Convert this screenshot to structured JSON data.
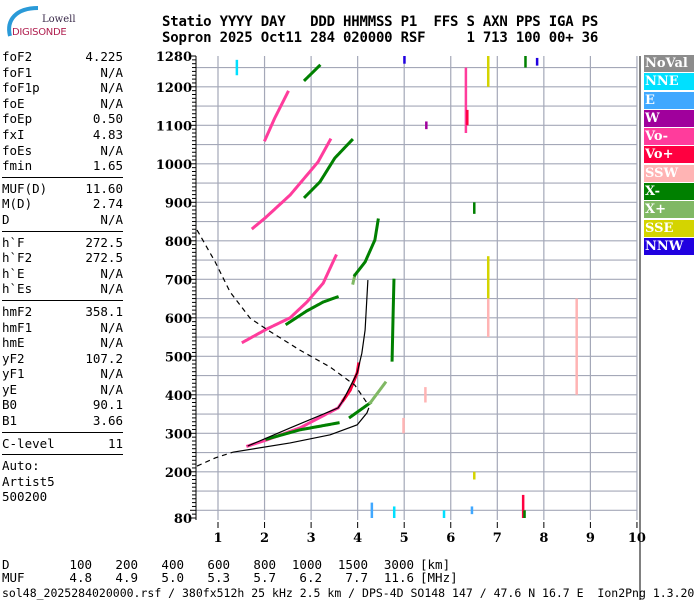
{
  "logo": {
    "line1": "Lowell",
    "line2": "DIGISONDE"
  },
  "header": {
    "line1": "Statio YYYY DAY   DDD HHMMSS P1  FFS S AXN PPS IGA PS",
    "line2": "Sopron 2025 Oct11 284 020000 RSF     1 713 100 00+ 36"
  },
  "params": {
    "groups": [
      [
        {
          "label": "foF2",
          "value": "4.225"
        },
        {
          "label": "foF1",
          "value": "N/A"
        },
        {
          "label": "foF1p",
          "value": "N/A"
        },
        {
          "label": "foE",
          "value": "N/A"
        },
        {
          "label": "foEp",
          "value": "0.50"
        },
        {
          "label": "fxI",
          "value": "4.83"
        },
        {
          "label": "foEs",
          "value": "N/A"
        },
        {
          "label": "fmin",
          "value": "1.65"
        }
      ],
      [
        {
          "label": "MUF(D)",
          "value": "11.60"
        },
        {
          "label": "M(D)",
          "value": "2.74"
        },
        {
          "label": "D",
          "value": "N/A"
        }
      ],
      [
        {
          "label": "h`F",
          "value": "272.5"
        },
        {
          "label": "h`F2",
          "value": "272.5"
        },
        {
          "label": "h`E",
          "value": "N/A"
        },
        {
          "label": "h`Es",
          "value": "N/A"
        }
      ],
      [
        {
          "label": "hmF2",
          "value": "358.1"
        },
        {
          "label": "hmF1",
          "value": "N/A"
        },
        {
          "label": "hmE",
          "value": "N/A"
        },
        {
          "label": "yF2",
          "value": "107.2"
        },
        {
          "label": "yF1",
          "value": "N/A"
        },
        {
          "label": "yE",
          "value": "N/A"
        },
        {
          "label": "B0",
          "value": "90.1"
        },
        {
          "label": "B1",
          "value": "3.66"
        }
      ],
      [
        {
          "label": "C-level",
          "value": "11"
        }
      ]
    ],
    "auto": [
      "Auto:",
      "Artist5",
      "500200"
    ]
  },
  "legend": [
    {
      "label": "NoVal",
      "color": "#8c8c8c"
    },
    {
      "label": "NNE",
      "color": "#00e0ff"
    },
    {
      "label": "E",
      "color": "#40a8ff"
    },
    {
      "label": "W",
      "color": "#a0009c"
    },
    {
      "label": "Vo-",
      "color": "#ff3c9c"
    },
    {
      "label": "Vo+",
      "color": "#ff0040"
    },
    {
      "label": "SSW",
      "color": "#ffb4b4"
    },
    {
      "label": "X-",
      "color": "#008000"
    },
    {
      "label": "X+",
      "color": "#80b864"
    },
    {
      "label": "SSE",
      "color": "#d4d400"
    },
    {
      "label": "NNW",
      "color": "#2000e0"
    }
  ],
  "muf_table": {
    "d_label": "D",
    "d_values": [
      "100",
      "200",
      "400",
      "600",
      "800",
      "1000",
      "1500",
      "3000"
    ],
    "d_unit": "[km]",
    "muf_label": "MUF",
    "muf_values": [
      "4.8",
      "4.9",
      "5.0",
      "5.3",
      "5.7",
      "6.2",
      "7.7",
      "11.6"
    ],
    "muf_unit": "[MHz]"
  },
  "footer": "sol48_2025284020000.rsf / 380fx512h 25 kHz 2.5 km / DPS-4D SO148 147 / 47.6 N 16.7 E  Ion2Png 1.3.20",
  "chart_data": {
    "type": "scatter",
    "xlim": [
      0.53,
      10.05
    ],
    "ylim": [
      80,
      1280
    ],
    "x_ticks": [
      "1",
      "2",
      "3",
      "4",
      "5",
      "6",
      "7",
      "8",
      "9",
      "10"
    ],
    "y_ticks": [
      "1280",
      "1200",
      "1100",
      "1000",
      "900",
      "800",
      "700",
      "600",
      "500",
      "400",
      "300",
      "200",
      "80"
    ],
    "grid": true,
    "grid_color": "#a4a8b8",
    "legend_placement": "right",
    "traces": [
      {
        "pol": "Vo-",
        "points": [
          [
            1.64,
            267
          ],
          [
            2.05,
            283
          ],
          [
            2.76,
            314
          ],
          [
            3.58,
            366
          ],
          [
            3.84,
            412
          ]
        ]
      },
      {
        "pol": "Vo+",
        "points": [
          [
            3.69,
            386
          ],
          [
            3.84,
            412
          ],
          [
            3.99,
            457
          ],
          [
            4.02,
            480
          ]
        ]
      },
      {
        "pol": "X-",
        "points": [
          [
            2.05,
            285
          ],
          [
            2.76,
            309
          ],
          [
            3.58,
            327
          ]
        ]
      },
      {
        "pol": "X-",
        "points": [
          [
            3.84,
            342
          ],
          [
            4.27,
            379
          ]
        ]
      },
      {
        "pol": "X+",
        "points": [
          [
            4.27,
            379
          ],
          [
            4.59,
            431
          ]
        ]
      },
      {
        "pol": "Vo-",
        "points": [
          [
            1.54,
            537
          ],
          [
            2.05,
            571
          ],
          [
            2.55,
            600
          ],
          [
            2.91,
            641
          ],
          [
            3.26,
            690
          ],
          [
            3.47,
            745
          ],
          [
            3.54,
            763
          ]
        ]
      },
      {
        "pol": "X-",
        "points": [
          [
            2.48,
            584
          ],
          [
            2.91,
            618
          ],
          [
            3.26,
            641
          ],
          [
            3.56,
            654
          ]
        ]
      },
      {
        "pol": "X+",
        "points": [
          [
            3.9,
            690
          ],
          [
            3.94,
            711
          ]
        ]
      },
      {
        "pol": "X-",
        "points": [
          [
            3.94,
            711
          ],
          [
            4.16,
            745
          ],
          [
            4.37,
            802
          ],
          [
            4.44,
            854
          ]
        ]
      },
      {
        "pol": "Vo-",
        "points": [
          [
            1.75,
            833
          ],
          [
            2.01,
            859
          ],
          [
            2.55,
            919
          ],
          [
            3.15,
            1005
          ],
          [
            3.41,
            1062
          ]
        ]
      },
      {
        "pol": "X-",
        "points": [
          [
            2.87,
            914
          ],
          [
            3.19,
            953
          ],
          [
            3.51,
            1015
          ],
          [
            3.88,
            1062
          ]
        ]
      },
      {
        "pol": "Vo-",
        "points": [
          [
            2.01,
            1062
          ],
          [
            2.22,
            1119
          ],
          [
            2.5,
            1186
          ]
        ]
      },
      {
        "pol": "X-",
        "points": [
          [
            2.87,
            1218
          ],
          [
            3.19,
            1256
          ]
        ]
      },
      {
        "pol": "X-",
        "points": [
          [
            4.74,
            490
          ],
          [
            4.76,
            600
          ],
          [
            4.78,
            700
          ]
        ]
      }
    ],
    "noise": [
      {
        "f": 6.32,
        "h": [
          1080,
          1250
        ],
        "pol": "Vo-"
      },
      {
        "f": 6.35,
        "h": [
          1100,
          1140
        ],
        "pol": "Vo+"
      },
      {
        "f": 6.8,
        "h": [
          1200,
          1280
        ],
        "pol": "SSE"
      },
      {
        "f": 6.8,
        "h": [
          650,
          760
        ],
        "pol": "SSE"
      },
      {
        "f": 6.8,
        "h": [
          550,
          650
        ],
        "pol": "SSW"
      },
      {
        "f": 7.55,
        "h": [
          80,
          140
        ],
        "pol": "Vo+"
      },
      {
        "f": 7.58,
        "h": [
          80,
          100
        ],
        "pol": "X-"
      },
      {
        "f": 8.7,
        "h": [
          400,
          650
        ],
        "pol": "SSW"
      },
      {
        "f": 5.47,
        "h": [
          1090,
          1110
        ],
        "pol": "W"
      },
      {
        "f": 5.45,
        "h": [
          380,
          420
        ],
        "pol": "SSW"
      },
      {
        "f": 4.98,
        "h": [
          300,
          340
        ],
        "pol": "SSW"
      },
      {
        "f": 4.3,
        "h": [
          80,
          120
        ],
        "pol": "E"
      },
      {
        "f": 4.78,
        "h": [
          80,
          110
        ],
        "pol": "NNE"
      },
      {
        "f": 5.85,
        "h": [
          80,
          100
        ],
        "pol": "NNE"
      },
      {
        "f": 6.5,
        "h": [
          870,
          900
        ],
        "pol": "X-"
      },
      {
        "f": 6.5,
        "h": [
          180,
          200
        ],
        "pol": "SSE"
      },
      {
        "f": 1.4,
        "h": [
          1230,
          1270
        ],
        "pol": "NNE"
      },
      {
        "f": 7.6,
        "h": [
          1250,
          1280
        ],
        "pol": "X-"
      },
      {
        "f": 7.85,
        "h": [
          1255,
          1275
        ],
        "pol": "NNW"
      },
      {
        "f": 5.0,
        "h": [
          1260,
          1280
        ],
        "pol": "NNW"
      },
      {
        "f": 6.45,
        "h": [
          90,
          110
        ],
        "pol": "E"
      }
    ],
    "model_curves": [
      {
        "style": "solid",
        "points": [
          [
            1.64,
            267
          ],
          [
            2.55,
            314
          ],
          [
            3.58,
            366
          ],
          [
            3.69,
            386
          ],
          [
            3.99,
            457
          ],
          [
            4.09,
            508
          ],
          [
            4.16,
            568
          ],
          [
            4.22,
            698
          ]
        ]
      },
      {
        "style": "solid",
        "points": [
          [
            1.32,
            251
          ],
          [
            2.55,
            275
          ],
          [
            3.41,
            296
          ],
          [
            3.99,
            322
          ],
          [
            4.2,
            353
          ],
          [
            4.24,
            366
          ]
        ]
      },
      {
        "style": "dashed",
        "points": [
          [
            0.55,
            828
          ],
          [
            0.94,
            745
          ],
          [
            1.26,
            667
          ],
          [
            1.69,
            599
          ],
          [
            2.07,
            568
          ],
          [
            2.76,
            516
          ],
          [
            3.41,
            472
          ],
          [
            3.94,
            425
          ],
          [
            4.2,
            379
          ]
        ]
      },
      {
        "style": "dashed",
        "points": [
          [
            0.55,
            215
          ],
          [
            0.94,
            236
          ],
          [
            1.32,
            251
          ]
        ]
      }
    ]
  }
}
